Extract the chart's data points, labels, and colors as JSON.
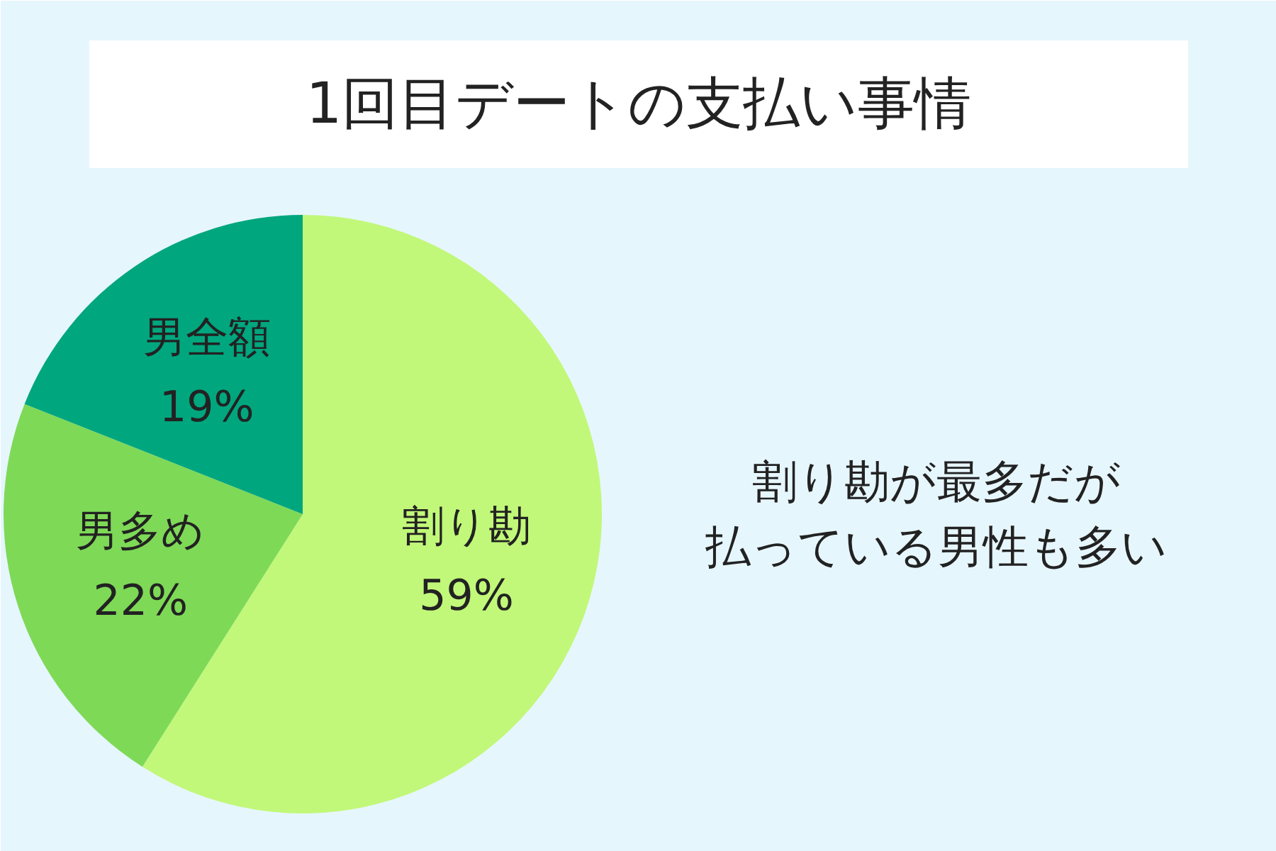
{
  "chart_data": {
    "type": "pie",
    "title": "1回目デートの支払い事情",
    "categories": [
      "割り勘",
      "男多め",
      "男全額"
    ],
    "values": [
      59,
      22,
      19
    ],
    "colors": [
      "#c1f879",
      "#7ed957",
      "#00a67e"
    ],
    "value_labels": [
      "59%",
      "22%",
      "19%"
    ],
    "annotations": [
      "割り勘が最多だが",
      "払っている男性も多い"
    ]
  }
}
